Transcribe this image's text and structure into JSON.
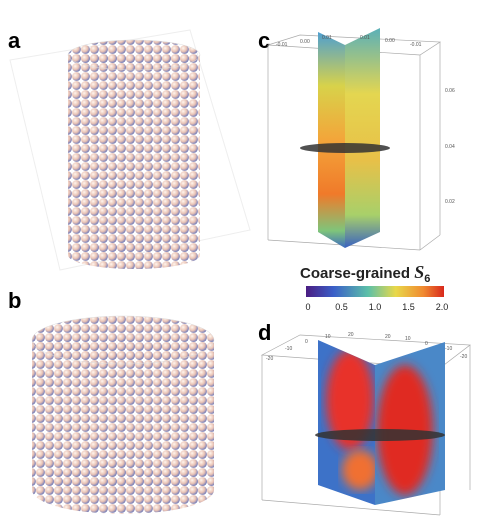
{
  "panels": {
    "a": {
      "label": "a"
    },
    "b": {
      "label": "b"
    },
    "c": {
      "label": "c",
      "top_ticks": [
        "-0.01",
        "0.00",
        "0.01",
        "0.01",
        "0.00",
        "-0.01"
      ],
      "side_ticks": [
        "0.06",
        "0.04",
        "0.02"
      ]
    },
    "d": {
      "label": "d",
      "top_ticks": [
        "-20",
        "-10",
        "0",
        "10",
        "20",
        "20",
        "10",
        "0",
        "-10",
        "-20"
      ]
    }
  },
  "colorbar": {
    "label_text": "Coarse-grained",
    "symbol": "S",
    "subscript": "6",
    "ticks": [
      "0",
      "0.5",
      "1.0",
      "1.5",
      "2.0"
    ]
  }
}
